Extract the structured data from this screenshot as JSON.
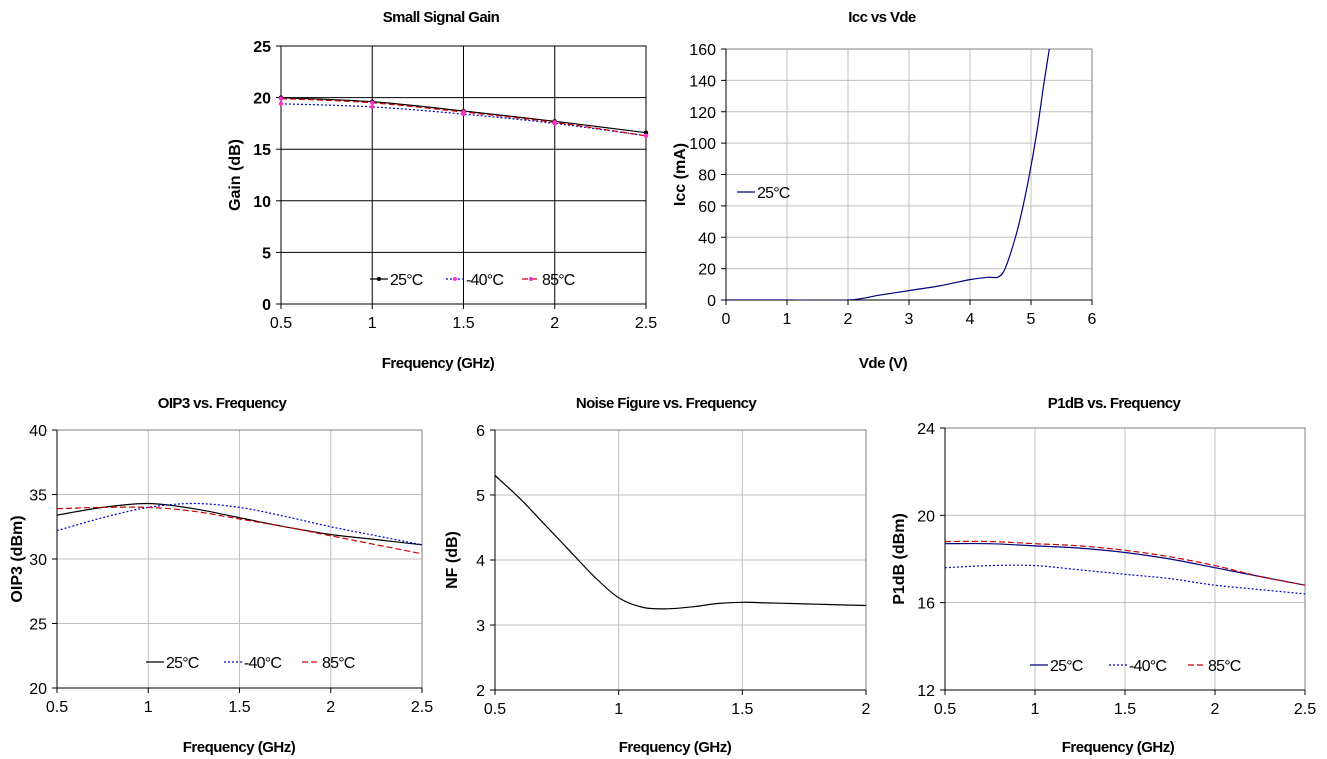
{
  "chart_data": [
    {
      "id": "gain",
      "type": "line",
      "title": "Small Signal Gain",
      "xlabel": "Frequency (GHz)",
      "ylabel": "Gain (dB)",
      "xlim": [
        0.5,
        2.5
      ],
      "ylim": [
        0,
        25
      ],
      "xticks": [
        "0.5",
        "1",
        "1.5",
        "2",
        "2.5"
      ],
      "yticks": [
        "0",
        "5",
        "10",
        "15",
        "20",
        "25"
      ],
      "grid": "major, dark",
      "legend": "bottom-center",
      "series": [
        {
          "name": "25°C",
          "color": "#000000",
          "style": "solid",
          "marker": "dot",
          "x": [
            0.5,
            1,
            1.5,
            2,
            2.5
          ],
          "y": [
            20.0,
            19.6,
            18.7,
            17.7,
            16.6
          ]
        },
        {
          "name": "-40°C",
          "color": "#0000cc",
          "style": "dotted",
          "marker": "dot-magenta",
          "x": [
            0.5,
            1,
            1.5,
            2,
            2.5
          ],
          "y": [
            19.4,
            19.1,
            18.4,
            17.5,
            16.3
          ]
        },
        {
          "name": "85°C",
          "color": "#cc0000",
          "style": "dashed",
          "marker": "dot-magenta",
          "x": [
            0.5,
            1,
            1.5,
            2,
            2.5
          ],
          "y": [
            19.9,
            19.5,
            18.6,
            17.6,
            16.3
          ]
        }
      ]
    },
    {
      "id": "icc",
      "type": "line",
      "title": "Icc vs Vde",
      "xlabel": "Vde (V)",
      "ylabel": "Icc (mA)",
      "xlim": [
        0,
        6
      ],
      "ylim": [
        0,
        160
      ],
      "xticks": [
        "0",
        "1",
        "2",
        "3",
        "4",
        "5",
        "6"
      ],
      "yticks": [
        "0",
        "20",
        "40",
        "60",
        "80",
        "100",
        "120",
        "140",
        "160"
      ],
      "grid": "major, light",
      "legend": "left",
      "series": [
        {
          "name": "25°C",
          "color": "#000080",
          "style": "solid",
          "x": [
            0,
            1,
            2,
            2.5,
            3,
            3.5,
            4,
            4.3,
            4.45,
            4.55,
            4.65,
            4.8,
            4.95,
            5.1,
            5.2,
            5.3
          ],
          "y": [
            0,
            0,
            0,
            3,
            6,
            9,
            13,
            14.5,
            14.5,
            18,
            28,
            48,
            75,
            108,
            135,
            160
          ]
        }
      ]
    },
    {
      "id": "oip3",
      "type": "line",
      "title": "OIP3 vs. Frequency",
      "xlabel": "Frequency (GHz)",
      "ylabel": "OIP3 (dBm)",
      "xlim": [
        0.5,
        2.5
      ],
      "ylim": [
        20,
        40
      ],
      "xticks": [
        "0.5",
        "1",
        "1.5",
        "2",
        "2.5"
      ],
      "yticks": [
        "20",
        "25",
        "30",
        "35",
        "40"
      ],
      "grid": "major, light",
      "legend": "bottom-center",
      "series": [
        {
          "name": "25°C",
          "color": "#000000",
          "style": "solid",
          "x": [
            0.5,
            0.75,
            1,
            1.25,
            1.5,
            1.75,
            2,
            2.25,
            2.5
          ],
          "y": [
            33.4,
            34.0,
            34.3,
            33.9,
            33.2,
            32.5,
            31.9,
            31.5,
            31.1
          ]
        },
        {
          "name": "-40°C",
          "color": "#0000cc",
          "style": "dotted",
          "x": [
            0.5,
            0.75,
            1,
            1.25,
            1.5,
            1.75,
            2,
            2.25,
            2.5
          ],
          "y": [
            32.2,
            33.2,
            34.0,
            34.3,
            34.0,
            33.3,
            32.5,
            31.8,
            31.1
          ]
        },
        {
          "name": "85°C",
          "color": "#cc0000",
          "style": "dashed",
          "x": [
            0.5,
            0.75,
            1,
            1.25,
            1.5,
            1.75,
            2,
            2.25,
            2.5
          ],
          "y": [
            33.9,
            34.0,
            34.0,
            33.7,
            33.1,
            32.5,
            31.8,
            31.1,
            30.4
          ]
        }
      ]
    },
    {
      "id": "nf",
      "type": "line",
      "title": "Noise Figure vs. Frequency",
      "xlabel": "Frequency (GHz)",
      "ylabel": "NF  (dB)",
      "xlim": [
        0.5,
        2
      ],
      "ylim": [
        2,
        6
      ],
      "xticks": [
        "0.5",
        "1",
        "1.5",
        "2"
      ],
      "yticks": [
        "2",
        "3",
        "4",
        "5",
        "6"
      ],
      "grid": "major, light",
      "legend": "none",
      "series": [
        {
          "name": "",
          "color": "#000000",
          "style": "solid",
          "x": [
            0.5,
            0.6,
            0.7,
            0.8,
            0.9,
            1.0,
            1.1,
            1.2,
            1.3,
            1.4,
            1.5,
            1.6,
            1.7,
            1.8,
            1.9,
            2.0
          ],
          "y": [
            5.3,
            4.95,
            4.55,
            4.15,
            3.75,
            3.42,
            3.27,
            3.25,
            3.28,
            3.33,
            3.35,
            3.34,
            3.33,
            3.32,
            3.31,
            3.3
          ]
        }
      ]
    },
    {
      "id": "p1db",
      "type": "line",
      "title": "P1dB vs. Frequency",
      "xlabel": "Frequency (GHz)",
      "ylabel": "P1dB (dBm)",
      "xlim": [
        0.5,
        2.5
      ],
      "ylim": [
        12,
        24
      ],
      "xticks": [
        "0.5",
        "1",
        "1.5",
        "2",
        "2.5"
      ],
      "yticks": [
        "12",
        "16",
        "20",
        "24"
      ],
      "grid": "major, light",
      "legend": "bottom-center",
      "series": [
        {
          "name": "25°C",
          "color": "#000080",
          "style": "solid",
          "x": [
            0.5,
            0.75,
            1,
            1.25,
            1.5,
            1.75,
            2,
            2.25,
            2.5
          ],
          "y": [
            18.7,
            18.7,
            18.6,
            18.5,
            18.3,
            18.0,
            17.6,
            17.2,
            16.8
          ]
        },
        {
          "name": "-40°C",
          "color": "#0000cc",
          "style": "dotted",
          "x": [
            0.5,
            0.75,
            1,
            1.25,
            1.5,
            1.75,
            2,
            2.25,
            2.5
          ],
          "y": [
            17.6,
            17.7,
            17.7,
            17.5,
            17.3,
            17.1,
            16.8,
            16.6,
            16.4
          ]
        },
        {
          "name": "85°C",
          "color": "#cc0000",
          "style": "dashed",
          "x": [
            0.5,
            0.75,
            1,
            1.25,
            1.5,
            1.75,
            2,
            2.25,
            2.5
          ],
          "y": [
            18.8,
            18.8,
            18.7,
            18.6,
            18.4,
            18.1,
            17.7,
            17.2,
            16.8
          ]
        }
      ]
    }
  ]
}
